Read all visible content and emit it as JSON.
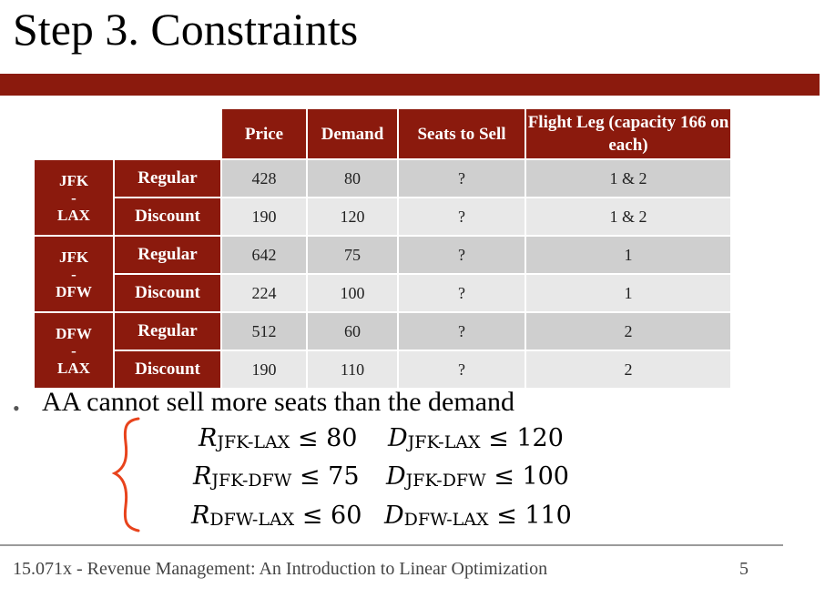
{
  "slide": {
    "title": "Step 3. Constraints",
    "accent_color": "#8b1a0d"
  },
  "table": {
    "headers": [
      "Price",
      "Demand",
      "Seats to Sell",
      "Flight Leg (capacity 166 on each)"
    ],
    "routes": [
      {
        "from": "JFK",
        "dash": "-",
        "to": "LAX",
        "rows": [
          {
            "fare": "Regular",
            "price": "428",
            "demand": "80",
            "seats": "?",
            "leg": "1 & 2"
          },
          {
            "fare": "Discount",
            "price": "190",
            "demand": "120",
            "seats": "?",
            "leg": "1 & 2"
          }
        ]
      },
      {
        "from": "JFK",
        "dash": "-",
        "to": "DFW",
        "rows": [
          {
            "fare": "Regular",
            "price": "642",
            "demand": "75",
            "seats": "?",
            "leg": "1"
          },
          {
            "fare": "Discount",
            "price": "224",
            "demand": "100",
            "seats": "?",
            "leg": "1"
          }
        ]
      },
      {
        "from": "DFW",
        "dash": "-",
        "to": "LAX",
        "rows": [
          {
            "fare": "Regular",
            "price": "512",
            "demand": "60",
            "seats": "?",
            "leg": "2"
          },
          {
            "fare": "Discount",
            "price": "190",
            "demand": "110",
            "seats": "?",
            "leg": "2"
          }
        ]
      }
    ]
  },
  "bullet": {
    "text": "AA cannot sell more seats than the demand"
  },
  "constraints": [
    {
      "r_var": "R",
      "r_sub": "JFK-LAX",
      "r_op": "≤",
      "r_val": "80",
      "d_var": "D",
      "d_sub": "JFK-LAX",
      "d_op": "≤",
      "d_val": "120"
    },
    {
      "r_var": "R",
      "r_sub": "JFK-DFW",
      "r_op": "≤",
      "r_val": "75",
      "d_var": "D",
      "d_sub": "JFK-DFW",
      "d_op": "≤",
      "d_val": "100"
    },
    {
      "r_var": "R",
      "r_sub": "DFW-LAX",
      "r_op": "≤",
      "r_val": "60",
      "d_var": "D",
      "d_sub": "DFW-LAX",
      "d_op": "≤",
      "d_val": "110"
    }
  ],
  "annotation": {
    "brace_color": "#e8431c"
  },
  "footer": {
    "course": "15.071x - Revenue Management: An Introduction to Linear Optimization",
    "page_number": "5"
  }
}
